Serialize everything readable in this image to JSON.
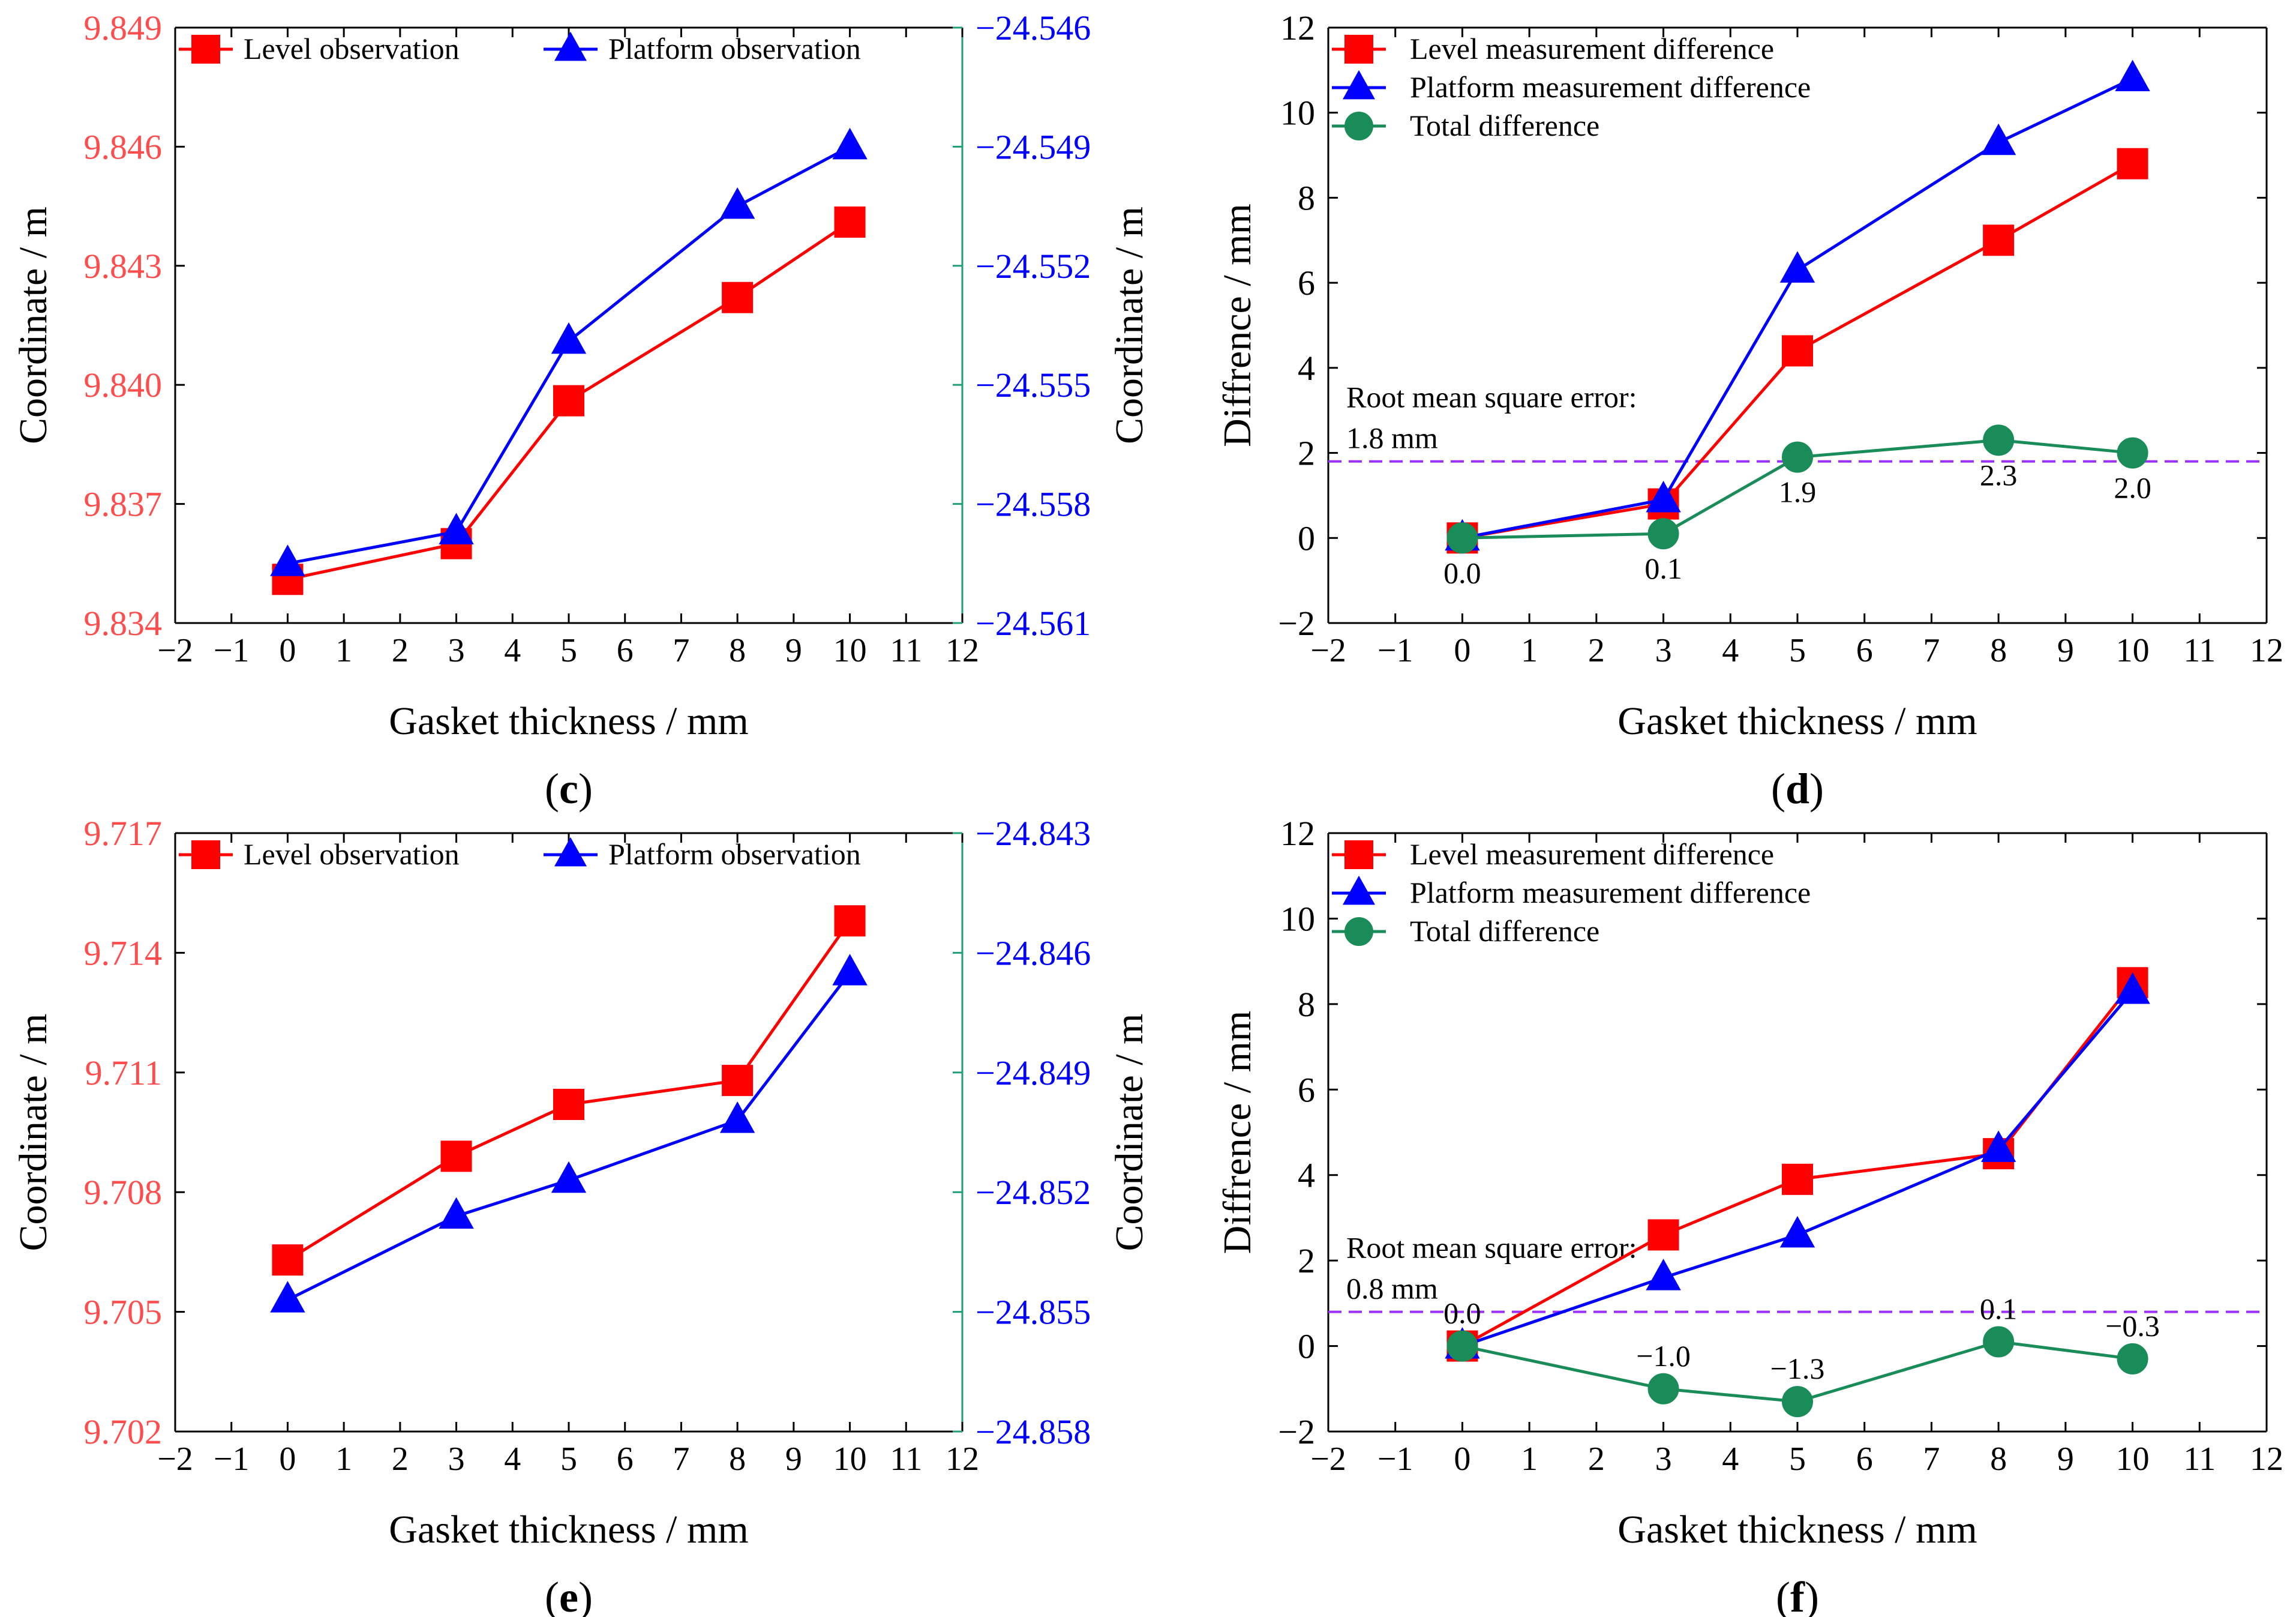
{
  "figure": {
    "background": "#ffffff",
    "tick_color": "#000000"
  },
  "chart_data": [
    {
      "id": "c",
      "type": "line",
      "caption_letter": "c",
      "xlabel": "Gasket thickness / mm",
      "xlim": [
        -2,
        12
      ],
      "xticks": [
        -2,
        -1,
        0,
        1,
        2,
        3,
        4,
        5,
        6,
        7,
        8,
        9,
        10,
        11,
        12
      ],
      "x": [
        0,
        3,
        5,
        8,
        10
      ],
      "left_axis": {
        "label": "Coordinate / m",
        "color": "#ff4d4d",
        "lim": [
          9.834,
          9.849
        ],
        "ticks": [
          "9.834",
          "9.837",
          "9.840",
          "9.843",
          "9.846",
          "9.849"
        ]
      },
      "right_axis": {
        "label": "Coordinate / m",
        "color": "#0000ff",
        "axis_line_color": "#20a070",
        "lim": [
          -24.561,
          -24.546
        ],
        "ticks": [
          "−24.561",
          "−24.558",
          "−24.555",
          "−24.552",
          "−24.549",
          "−24.546"
        ]
      },
      "series": [
        {
          "name": "Level observation",
          "axis": "left",
          "color": "#ff0000",
          "marker": "square",
          "values": [
            9.8351,
            9.836,
            9.8396,
            9.8422,
            9.8441
          ]
        },
        {
          "name": "Platform observation",
          "axis": "right",
          "color": "#0000ff",
          "marker": "triangle",
          "values": [
            -24.5595,
            -24.5587,
            -24.5539,
            -24.5505,
            -24.549
          ]
        }
      ]
    },
    {
      "id": "d",
      "type": "line",
      "caption_letter": "d",
      "xlabel": "Gasket thickness / mm",
      "xlim": [
        -2,
        12
      ],
      "xticks": [
        -2,
        -1,
        0,
        1,
        2,
        3,
        4,
        5,
        6,
        7,
        8,
        9,
        10,
        11,
        12
      ],
      "x": [
        0,
        3,
        5,
        8,
        10
      ],
      "left_axis": {
        "label": "Diffrence / mm",
        "color": "#000000",
        "lim": [
          -2,
          12
        ],
        "ticks": [
          "−2",
          "0",
          "2",
          "4",
          "6",
          "8",
          "10",
          "12"
        ]
      },
      "series": [
        {
          "name": "Level measurement difference",
          "axis": "left",
          "color": "#ff0000",
          "marker": "square",
          "values": [
            0.0,
            0.8,
            4.4,
            7.0,
            8.8
          ]
        },
        {
          "name": "Platform measurement difference",
          "axis": "left",
          "color": "#0000ff",
          "marker": "triangle",
          "values": [
            0.0,
            0.9,
            6.3,
            9.3,
            10.8
          ]
        },
        {
          "name": "Total difference",
          "axis": "left",
          "color": "#1a8c5a",
          "marker": "circle",
          "values": [
            0.0,
            0.1,
            1.9,
            2.3,
            2.0
          ],
          "labels": [
            "0.0",
            "0.1",
            "1.9",
            "2.3",
            "2.0"
          ],
          "label_offsets": [
            1,
            1,
            1,
            1,
            1
          ]
        }
      ],
      "reference_line": {
        "value": 1.8,
        "color": "#9b30ff",
        "style": "dashed"
      },
      "annotation": {
        "line1": "Root mean square error:",
        "line2": "1.8 mm"
      }
    },
    {
      "id": "e",
      "type": "line",
      "caption_letter": "e",
      "xlabel": "Gasket thickness / mm",
      "xlim": [
        -2,
        12
      ],
      "xticks": [
        -2,
        -1,
        0,
        1,
        2,
        3,
        4,
        5,
        6,
        7,
        8,
        9,
        10,
        11,
        12
      ],
      "x": [
        0,
        3,
        5,
        8,
        10
      ],
      "left_axis": {
        "label": "Coordinate / m",
        "color": "#ff4d4d",
        "lim": [
          9.702,
          9.717
        ],
        "ticks": [
          "9.702",
          "9.705",
          "9.708",
          "9.711",
          "9.714",
          "9.717"
        ]
      },
      "right_axis": {
        "label": "Coordinate / m",
        "color": "#0000ff",
        "axis_line_color": "#20a070",
        "lim": [
          -24.858,
          -24.843
        ],
        "ticks": [
          "−24.858",
          "−24.855",
          "−24.852",
          "−24.849",
          "−24.846",
          "−24.843"
        ]
      },
      "series": [
        {
          "name": "Level observation",
          "axis": "left",
          "color": "#ff0000",
          "marker": "square",
          "values": [
            9.7063,
            9.7089,
            9.7102,
            9.7108,
            9.7148
          ]
        },
        {
          "name": "Platform observation",
          "axis": "right",
          "color": "#0000ff",
          "marker": "triangle",
          "values": [
            -24.8547,
            -24.8526,
            -24.8517,
            -24.8502,
            -24.8465
          ]
        }
      ]
    },
    {
      "id": "f",
      "type": "line",
      "caption_letter": "f",
      "xlabel": "Gasket thickness / mm",
      "xlim": [
        -2,
        12
      ],
      "xticks": [
        -2,
        -1,
        0,
        1,
        2,
        3,
        4,
        5,
        6,
        7,
        8,
        9,
        10,
        11,
        12
      ],
      "x": [
        0,
        3,
        5,
        8,
        10
      ],
      "left_axis": {
        "label": "Diffrence / mm",
        "color": "#000000",
        "lim": [
          -2,
          12
        ],
        "ticks": [
          "−2",
          "0",
          "2",
          "4",
          "6",
          "8",
          "10",
          "12"
        ]
      },
      "series": [
        {
          "name": "Level measurement difference",
          "axis": "left",
          "color": "#ff0000",
          "marker": "square",
          "values": [
            0.0,
            2.6,
            3.9,
            4.5,
            8.5
          ]
        },
        {
          "name": "Platform measurement difference",
          "axis": "left",
          "color": "#0000ff",
          "marker": "triangle",
          "values": [
            0.0,
            1.6,
            2.6,
            4.6,
            8.3
          ]
        },
        {
          "name": "Total difference",
          "axis": "left",
          "color": "#1a8c5a",
          "marker": "circle",
          "values": [
            0.0,
            -1.0,
            -1.3,
            0.1,
            -0.3
          ],
          "labels": [
            "0.0",
            "−1.0",
            "−1.3",
            "0.1",
            "−0.3"
          ],
          "label_offsets": [
            -1,
            -1,
            -1,
            -1,
            -1
          ]
        }
      ],
      "reference_line": {
        "value": 0.8,
        "color": "#9b30ff",
        "style": "dashed"
      },
      "annotation": {
        "line1": "Root mean square error:",
        "line2": "0.8 mm"
      }
    }
  ]
}
